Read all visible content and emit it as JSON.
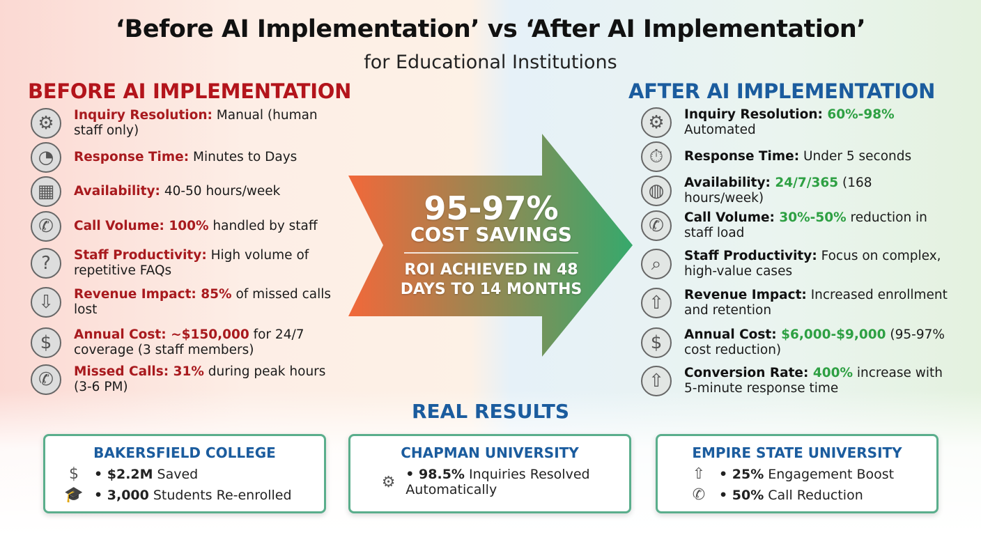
{
  "title": "‘Before AI Implementation’ vs ‘After AI Implementation’",
  "subtitle": "for Educational Institutions",
  "before": {
    "heading": "BEFORE AI IMPLEMENTATION",
    "items": [
      {
        "icon": "gear-person-icon",
        "label": "Inquiry Resolution:",
        "highlight": "",
        "text": " Manual (human staff only)"
      },
      {
        "icon": "clock-icon",
        "label": "Response Time:",
        "highlight": "",
        "text": " Minutes to Days"
      },
      {
        "icon": "calendar-clock-icon",
        "label": "Availability:",
        "highlight": "",
        "text": " 40-50 hours/week"
      },
      {
        "icon": "phone-incoming-icon",
        "label": "Call Volume:",
        "highlight": " 100%",
        "text": " handled by staff"
      },
      {
        "icon": "question-documents-icon",
        "label": "Staff Productivity:",
        "highlight": "",
        "text": " High volume of repetitive FAQs"
      },
      {
        "icon": "dollar-down-arrow-icon",
        "label": "Revenue Impact:",
        "highlight": " 85%",
        "text": " of missed calls lost"
      },
      {
        "icon": "price-tag-icon",
        "label": "Annual Cost:",
        "highlight": " ~$150,000",
        "text": " for 24/7 coverage (3 staff members)"
      },
      {
        "icon": "phone-missed-icon",
        "label": "Missed Calls:",
        "highlight": " 31%",
        "text": " during peak hours (3-6 PM)"
      }
    ]
  },
  "after": {
    "heading": "AFTER AI IMPLEMENTATION",
    "items": [
      {
        "icon": "gear-brain-icon",
        "label": "Inquiry Resolution:",
        "highlight": " 60%-98%",
        "text": " Automated"
      },
      {
        "icon": "stopwatch-bolt-icon",
        "label": "Response Time:",
        "highlight": "",
        "text": " Under 5 seconds"
      },
      {
        "icon": "globe-clock-icon",
        "label": "Availability:",
        "highlight": " 24/7/365",
        "text": " (168 hours/week)"
      },
      {
        "icon": "phone-ai-icon",
        "label": "Call Volume:",
        "highlight": " 30%-50%",
        "text": " reduction in staff load"
      },
      {
        "icon": "brain-magnifier-icon",
        "label": "Staff Productivity:",
        "highlight": "",
        "text": " Focus on complex, high-value cases"
      },
      {
        "icon": "graduation-money-up-icon",
        "label": "Revenue Impact:",
        "highlight": "",
        "text": " Increased enrollment and retention"
      },
      {
        "icon": "dollar-chart-down-icon",
        "label": "Annual Cost:",
        "highlight": " $6,000-$9,000",
        "text": " (95-97% cost reduction)"
      },
      {
        "icon": "megaphone-up-arrow-icon",
        "label": "Conversion Rate:",
        "highlight": " 400%",
        "text": " increase with 5-minute response time"
      }
    ]
  },
  "center": {
    "savings": "95-97%",
    "savings_label": "COST SAVINGS",
    "roi_line1": "ROI ACHIEVED IN 48",
    "roi_line2": "DAYS TO 14 MONTHS",
    "colors": {
      "start": "#f2683a",
      "end": "#36a96c"
    }
  },
  "results": {
    "heading": "REAL RESULTS",
    "cards": [
      {
        "name": "BAKERSFIELD COLLEGE",
        "lines": [
          {
            "icon": "dollar-coin-icon",
            "bold": "• $2.2M",
            "text": "Saved"
          },
          {
            "icon": "graduation-cap-icon",
            "bold": "• 3,000",
            "text": "Students Re-enrolled"
          }
        ]
      },
      {
        "name": "CHAPMAN UNIVERSITY",
        "lines": [
          {
            "icon": "robot-arm-icon",
            "bold": "• 98.5%",
            "text": "Inquiries Resolved Automatically"
          }
        ]
      },
      {
        "name": "EMPIRE STATE UNIVERSITY",
        "lines": [
          {
            "icon": "up-arrow-icon",
            "bold": "• 25%",
            "text": "Engagement Boost"
          },
          {
            "icon": "phone-down-icon",
            "bold": "• 50%",
            "text": "Call Reduction"
          }
        ]
      }
    ]
  }
}
